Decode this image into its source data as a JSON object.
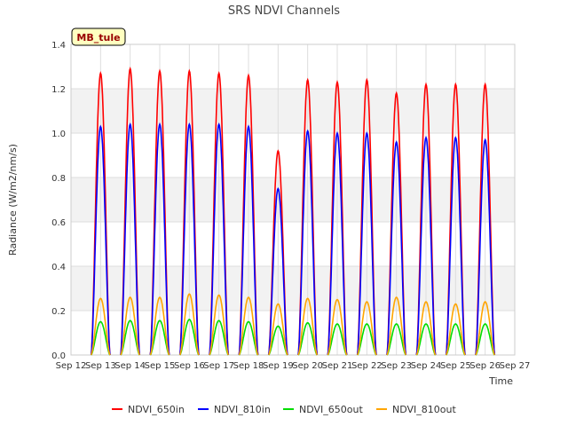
{
  "chart_data": {
    "type": "line",
    "title": "SRS NDVI Channels",
    "xlabel": "Time",
    "ylabel": "Radiance (W/m2/nm/s)",
    "ylim": [
      0,
      1.4
    ],
    "xlim": [
      12,
      27
    ],
    "yticks": [
      "0.0",
      "0.2",
      "0.4",
      "0.6",
      "0.8",
      "1.0",
      "1.2",
      "1.4"
    ],
    "xticks": [
      "Sep 12",
      "Sep 13",
      "Sep 14",
      "Sep 15",
      "Sep 16",
      "Sep 17",
      "Sep 18",
      "Sep 19",
      "Sep 20",
      "Sep 21",
      "Sep 22",
      "Sep 23",
      "Sep 24",
      "Sep 25",
      "Sep 26",
      "Sep 27"
    ],
    "grid_bands": true,
    "legend_position": "bottom",
    "annotation": "MB_tule",
    "days": [
      13,
      14,
      15,
      16,
      17,
      18,
      19,
      20,
      21,
      22,
      23,
      24,
      25,
      26
    ],
    "series": [
      {
        "name": "NDVI_650in",
        "color": "#ff0000",
        "peaks": [
          1.27,
          1.29,
          1.28,
          1.28,
          1.27,
          1.26,
          0.92,
          1.24,
          1.23,
          1.24,
          1.18,
          1.22,
          1.22,
          1.22
        ]
      },
      {
        "name": "NDVI_810in",
        "color": "#0000ff",
        "peaks": [
          1.03,
          1.04,
          1.04,
          1.04,
          1.04,
          1.03,
          0.75,
          1.01,
          1.0,
          1.0,
          0.96,
          0.98,
          0.98,
          0.97
        ]
      },
      {
        "name": "NDVI_650out",
        "color": "#00dd00",
        "peaks": [
          0.15,
          0.155,
          0.155,
          0.16,
          0.155,
          0.15,
          0.13,
          0.145,
          0.14,
          0.14,
          0.14,
          0.14,
          0.14,
          0.14
        ]
      },
      {
        "name": "NDVI_810out",
        "color": "#ffa500",
        "peaks": [
          0.255,
          0.26,
          0.26,
          0.275,
          0.27,
          0.26,
          0.23,
          0.255,
          0.25,
          0.24,
          0.26,
          0.24,
          0.23,
          0.24
        ]
      }
    ]
  }
}
